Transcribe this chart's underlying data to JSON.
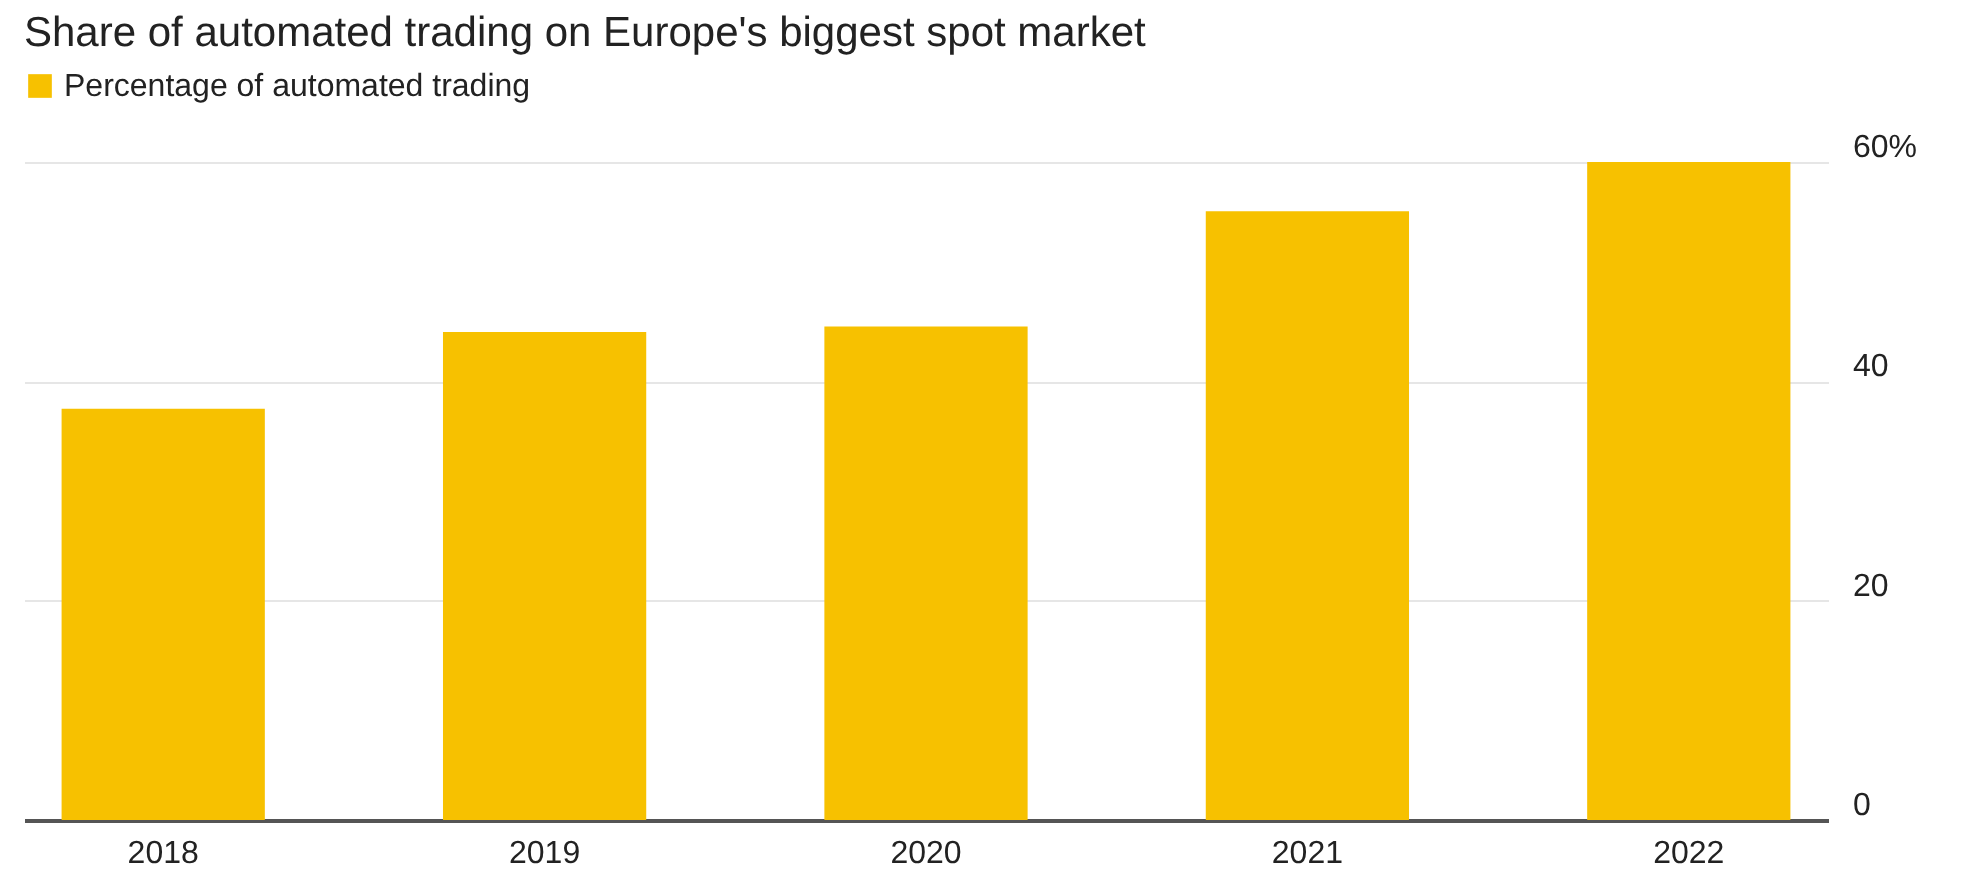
{
  "chart_data": {
    "type": "bar",
    "title": "Share of automated trading on Europe's biggest spot market",
    "categories": [
      "2018",
      "2019",
      "2020",
      "2021",
      "2022"
    ],
    "series": [
      {
        "name": "Percentage of automated trading",
        "color": "#f7c100",
        "values": [
          37.5,
          44.5,
          45,
          55.5,
          60
        ]
      }
    ],
    "ylim": [
      0,
      60
    ],
    "yticks": [
      0,
      20,
      40,
      {
        "value": 60,
        "label": "60%"
      }
    ],
    "grid": "y",
    "legend": "top left"
  }
}
